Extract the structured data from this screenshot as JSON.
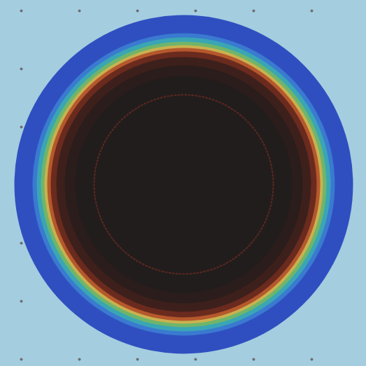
{
  "chart_data": {
    "type": "radial_heatmap",
    "xlim": [
      0,
      523
    ],
    "ylim": [
      0,
      523
    ],
    "tick_labels": false,
    "center": [
      262,
      263
    ],
    "radii": [
      242,
      216,
      210,
      204,
      199,
      195,
      190,
      182,
      170,
      155
    ],
    "colors": [
      "#2f4fc0",
      "#3a7ad0",
      "#3aa6b4",
      "#6fb56a",
      "#c9b150",
      "#b5582c",
      "#6a2a1e",
      "#3d201b",
      "#2a1d1b",
      "#221d1d"
    ],
    "inner_ring": {
      "radius": 128,
      "color": "#5a2820",
      "line_style": "dotted"
    },
    "points": {
      "x": [
        30,
        113,
        196,
        279,
        362,
        445,
        30,
        30,
        30,
        30,
        30,
        113,
        196,
        279,
        362,
        445
      ],
      "y": [
        15,
        15,
        15,
        15,
        15,
        15,
        98,
        181,
        347,
        430,
        513,
        513,
        513,
        513,
        513,
        513
      ],
      "color": "#6e6e6e"
    }
  }
}
